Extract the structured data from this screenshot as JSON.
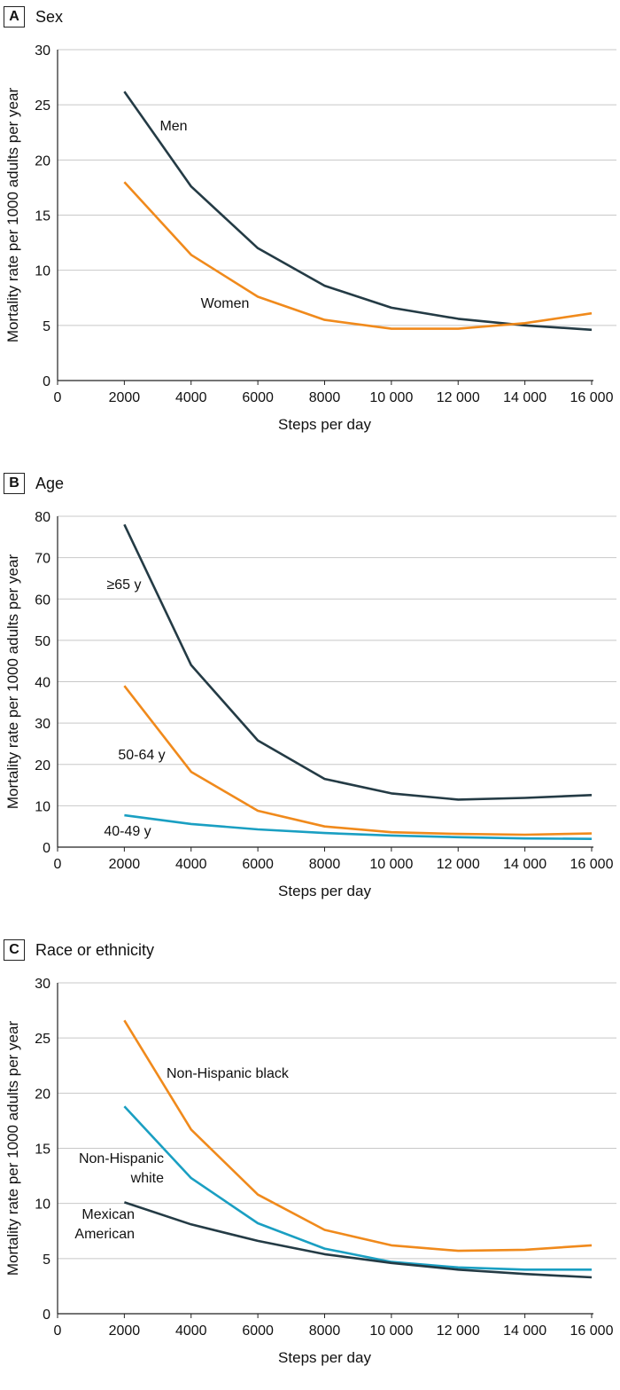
{
  "chart_data": [
    {
      "type": "line",
      "panel_letter": "A",
      "title": "Sex",
      "xlabel": "Steps per day",
      "ylabel": "Mortality rate per 1000 adults per year",
      "x": [
        2000,
        4000,
        6000,
        8000,
        10000,
        12000,
        14000,
        16000
      ],
      "xlim": [
        0,
        16000
      ],
      "ylim": [
        0,
        30
      ],
      "x_ticks": [
        "0",
        "2000",
        "4000",
        "6000",
        "8000",
        "10 000",
        "12 000",
        "14 000",
        "16 000"
      ],
      "y_ticks": [
        "0",
        "5",
        "10",
        "15",
        "20",
        "25",
        "30"
      ],
      "grid": "horizontal",
      "series": [
        {
          "name": "Men",
          "color": "#243b45",
          "values": [
            26.2,
            17.6,
            12.0,
            8.6,
            6.6,
            5.6,
            5.0,
            4.6
          ]
        },
        {
          "name": "Women",
          "color": "#f08a1c",
          "values": [
            18.0,
            11.4,
            7.6,
            5.5,
            4.7,
            4.7,
            5.2,
            6.1
          ]
        }
      ]
    },
    {
      "type": "line",
      "panel_letter": "B",
      "title": "Age",
      "xlabel": "Steps per day",
      "ylabel": "Mortality rate per 1000 adults per year",
      "x": [
        2000,
        4000,
        6000,
        8000,
        10000,
        12000,
        14000,
        16000
      ],
      "xlim": [
        0,
        16000
      ],
      "ylim": [
        0,
        80
      ],
      "x_ticks": [
        "0",
        "2000",
        "4000",
        "6000",
        "8000",
        "10 000",
        "12 000",
        "14 000",
        "16 000"
      ],
      "y_ticks": [
        "0",
        "10",
        "20",
        "30",
        "40",
        "50",
        "60",
        "70",
        "80"
      ],
      "grid": "horizontal",
      "series": [
        {
          "name": "≥65 y",
          "color": "#243b45",
          "values": [
            78.0,
            44.0,
            25.8,
            16.5,
            13.0,
            11.5,
            11.9,
            12.6
          ]
        },
        {
          "name": "50-64 y",
          "color": "#f08a1c",
          "values": [
            39.0,
            18.2,
            8.8,
            5.0,
            3.6,
            3.2,
            3.0,
            3.3
          ]
        },
        {
          "name": "40-49 y",
          "color": "#1a9fc2",
          "values": [
            7.7,
            5.6,
            4.3,
            3.4,
            2.8,
            2.4,
            2.1,
            2.0
          ]
        }
      ]
    },
    {
      "type": "line",
      "panel_letter": "C",
      "title": "Race or ethnicity",
      "xlabel": "Steps per day",
      "ylabel": "Mortality rate per 1000 adults per year",
      "x": [
        2000,
        4000,
        6000,
        8000,
        10000,
        12000,
        14000,
        16000
      ],
      "xlim": [
        0,
        16000
      ],
      "ylim": [
        0,
        30
      ],
      "x_ticks": [
        "0",
        "2000",
        "4000",
        "6000",
        "8000",
        "10 000",
        "12 000",
        "14 000",
        "16 000"
      ],
      "y_ticks": [
        "0",
        "5",
        "10",
        "15",
        "20",
        "25",
        "30"
      ],
      "grid": "horizontal",
      "series": [
        {
          "name": "Non-Hispanic black",
          "label_lines": [
            "Non-Hispanic black"
          ],
          "color": "#f08a1c",
          "values": [
            26.6,
            16.7,
            10.8,
            7.6,
            6.2,
            5.7,
            5.8,
            6.2
          ]
        },
        {
          "name": "Non-Hispanic white",
          "label_lines": [
            "Non-Hispanic",
            "white"
          ],
          "color": "#1a9fc2",
          "values": [
            18.8,
            12.3,
            8.2,
            5.9,
            4.7,
            4.2,
            4.0,
            4.0
          ]
        },
        {
          "name": "Mexican American",
          "label_lines": [
            "Mexican",
            "American"
          ],
          "color": "#243b45",
          "values": [
            10.1,
            8.1,
            6.6,
            5.4,
            4.6,
            4.0,
            3.6,
            3.3
          ]
        }
      ]
    }
  ]
}
